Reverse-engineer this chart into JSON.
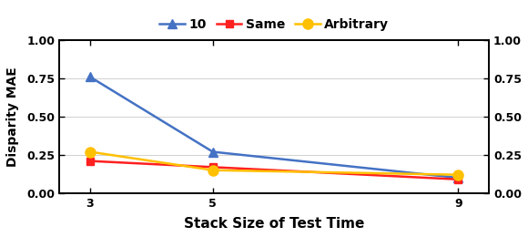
{
  "x": [
    3,
    5,
    9
  ],
  "series": [
    {
      "label": "10",
      "values": [
        0.76,
        0.27,
        0.1
      ],
      "color": "#4472C4",
      "marker": "^",
      "markersize": 7,
      "linewidth": 1.8
    },
    {
      "label": "Same",
      "values": [
        0.21,
        0.17,
        0.09
      ],
      "color": "#FF2020",
      "marker": "s",
      "markersize": 6,
      "linewidth": 1.8
    },
    {
      "label": "Arbitrary",
      "values": [
        0.27,
        0.15,
        0.12
      ],
      "color": "#FFC000",
      "marker": "o",
      "markersize": 8,
      "linewidth": 1.8
    }
  ],
  "xlabel": "Stack Size of Test Time",
  "ylabel": "Disparity MAE",
  "ylim": [
    0.0,
    1.0
  ],
  "yticks": [
    0.0,
    0.25,
    0.5,
    0.75,
    1.0
  ],
  "xticks": [
    3,
    5,
    9
  ],
  "background_color": "#ffffff",
  "grid_color": "#d0d0d0",
  "xlabel_fontsize": 11,
  "ylabel_fontsize": 10,
  "tick_fontsize": 9,
  "legend_fontsize": 10
}
